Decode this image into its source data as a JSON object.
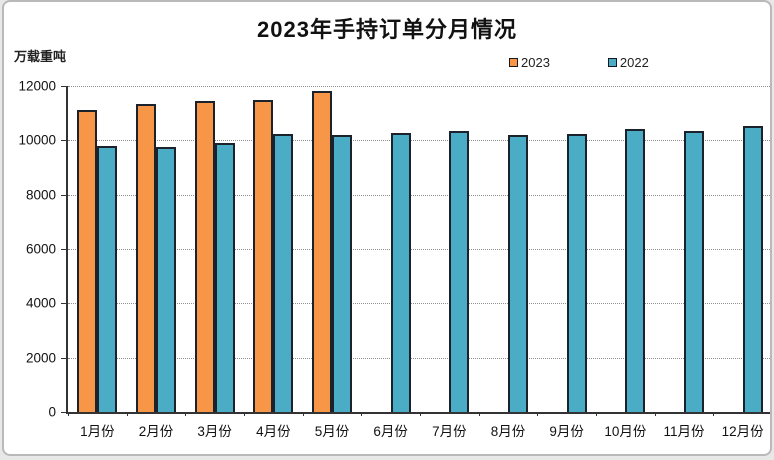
{
  "chart": {
    "title": "2023年手持订单分月情况",
    "unit_label": "万载重吨",
    "legend": [
      {
        "label": "2023",
        "color": "#F79646"
      },
      {
        "label": "2022",
        "color": "#4BACC6"
      }
    ]
  },
  "chart_data": {
    "type": "bar",
    "title": "2023年手持订单分月情况",
    "xlabel": "",
    "ylabel": "万载重吨",
    "categories": [
      "1月份",
      "2月份",
      "3月份",
      "4月份",
      "5月份",
      "6月份",
      "7月份",
      "8月份",
      "9月份",
      "10月份",
      "11月份",
      "12月份"
    ],
    "series": [
      {
        "name": "2023",
        "color": "#F79646",
        "values": [
          11100,
          11350,
          11450,
          11500,
          11800,
          null,
          null,
          null,
          null,
          null,
          null,
          null
        ]
      },
      {
        "name": "2022",
        "color": "#4BACC6",
        "values": [
          9800,
          9750,
          9900,
          10230,
          10200,
          10270,
          10350,
          10200,
          10250,
          10430,
          10350,
          10530
        ]
      }
    ],
    "ylim": [
      0,
      12000
    ],
    "ytick_step": 2000,
    "grid": "horizontal-dotted",
    "legend_position": "top-right",
    "bar_border_color": "#1c222c"
  }
}
